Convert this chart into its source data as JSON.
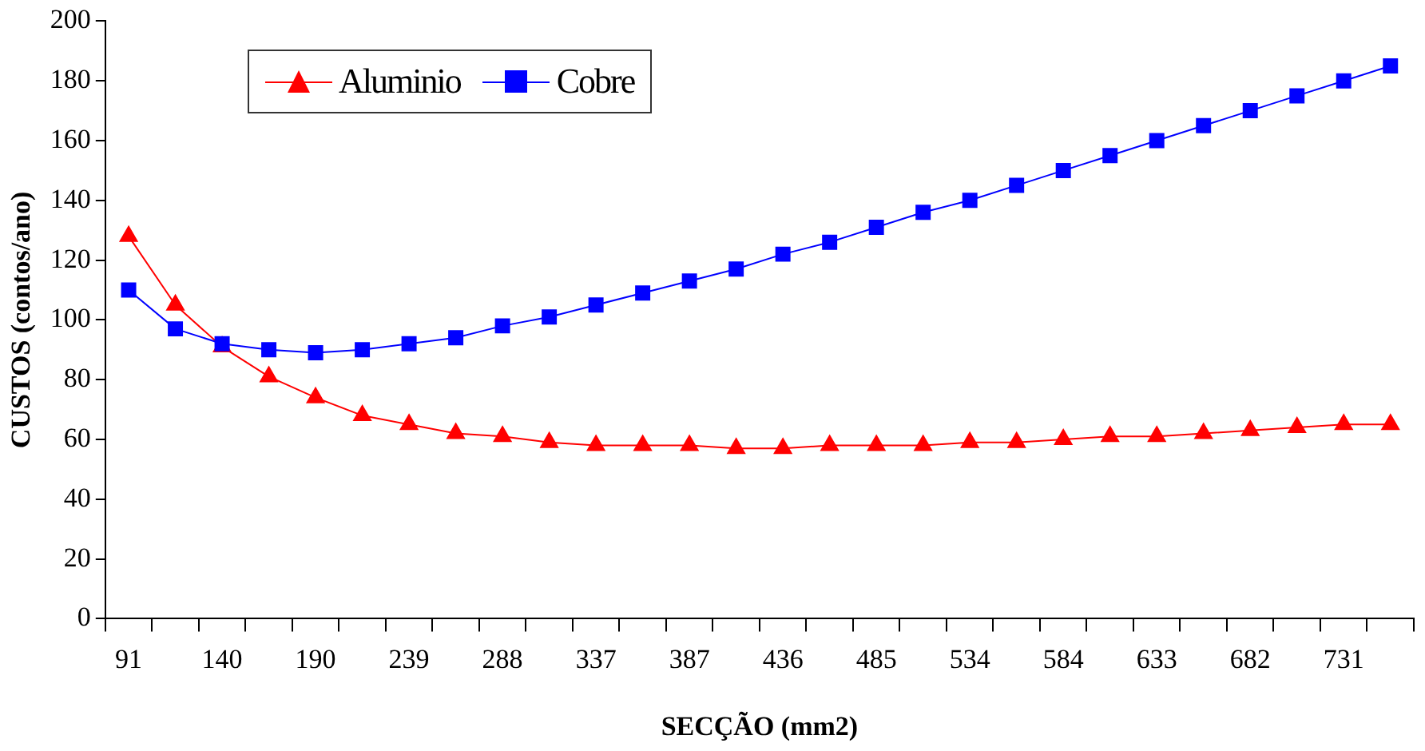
{
  "chart_data": {
    "type": "line",
    "xlabel": "SECÇÃO (mm2)",
    "ylabel": "CUSTOS (contos/ano)",
    "categories": [
      "91",
      null,
      "140",
      null,
      "190",
      null,
      "239",
      null,
      "288",
      null,
      "337",
      null,
      "387",
      null,
      "436",
      null,
      "485",
      null,
      "534",
      null,
      "584",
      null,
      "633",
      null,
      "682",
      null,
      "731",
      null
    ],
    "series": [
      {
        "name": "Aluminio",
        "color": "#ff0000",
        "marker": "triangle",
        "values": [
          128,
          105,
          91,
          81,
          74,
          68,
          65,
          62,
          61,
          59,
          58,
          58,
          58,
          57,
          57,
          58,
          58,
          58,
          59,
          59,
          60,
          61,
          61,
          62,
          63,
          64,
          65,
          65
        ]
      },
      {
        "name": "Cobre",
        "color": "#0000ff",
        "marker": "square",
        "values": [
          110,
          97,
          92,
          90,
          89,
          90,
          92,
          94,
          98,
          101,
          105,
          109,
          113,
          117,
          122,
          126,
          131,
          136,
          140,
          145,
          150,
          155,
          160,
          165,
          170,
          175,
          180,
          185
        ]
      }
    ],
    "ylim": [
      0,
      200
    ],
    "yticks": [
      0,
      20,
      40,
      60,
      80,
      100,
      120,
      140,
      160,
      180,
      200
    ],
    "grid": false,
    "legend": "top left"
  }
}
